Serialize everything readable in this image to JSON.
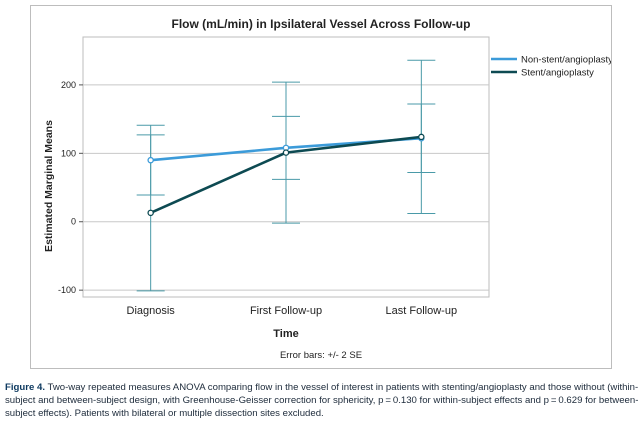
{
  "chart_data": {
    "type": "line",
    "title": "Flow (mL/min) in Ipsilateral Vessel Across Follow-up",
    "xlabel": "Time",
    "ylabel": "Estimated Marginal Means",
    "categories": [
      "Diagnosis",
      "First Follow-up",
      "Last Follow-up"
    ],
    "ylim": [
      -110,
      270
    ],
    "yticks": [
      -100,
      0,
      100,
      200
    ],
    "ytick_labels": [
      "-100",
      "0",
      "100",
      "200"
    ],
    "grid": true,
    "legend_position": "top-right",
    "error_bar_label": "Error bars: +/- 2 SE",
    "series": [
      {
        "name": "Non-stent/angioplasty",
        "color": "#3c9bd9",
        "values": [
          90,
          108,
          122
        ],
        "err_low": [
          39,
          62,
          72
        ],
        "err_high": [
          141,
          154,
          172
        ]
      },
      {
        "name": "Stent/angioplasty",
        "color": "#0d4a52",
        "values": [
          13,
          101,
          124
        ],
        "err_low": [
          -101,
          -2,
          12
        ],
        "err_high": [
          127,
          204,
          236
        ]
      }
    ]
  },
  "caption": {
    "label": "Figure 4.",
    "text": "Two-way repeated measures ANOVA comparing flow in the vessel of interest in patients with stenting/angioplasty and those without (within-subject and between-subject design, with Greenhouse-Geisser correction for sphericity, p = 0.130 for within-subject effects and p = 0.629 for between-subject effects). Patients with bilateral or multiple dissection sites excluded."
  }
}
